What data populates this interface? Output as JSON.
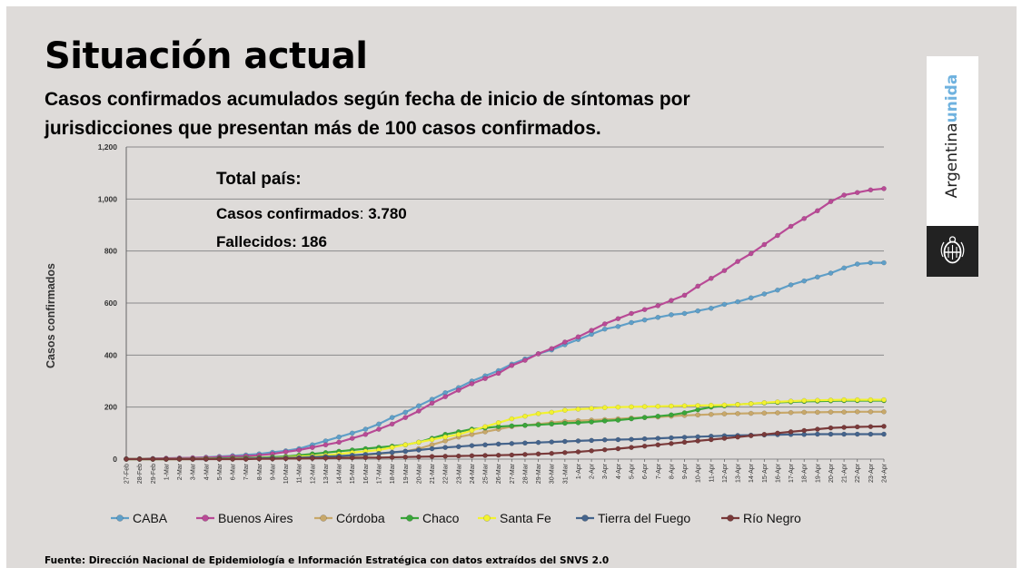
{
  "page": {
    "title": "Situación actual",
    "subtitle": "Casos confirmados acumulados según fecha de inicio de síntomas por jurisdicciones que presentan más de 100 casos confirmados.",
    "source": "Fuente: Dirección Nacional de Epidemiología e Información Estratégica con datos extraídos del SNVS 2.0",
    "brand": {
      "text_main": "Argentina",
      "text_accent": "unida",
      "emblem": "shield-emblem-icon"
    }
  },
  "colors": {
    "background": "#dedbd9",
    "grid": "#8a8a8a",
    "CABA": "#5f9fc8",
    "Buenos Aires": "#b94a96",
    "Córdoba": "#c8a86a",
    "Chaco": "#3aa63a",
    "Santa Fe": "#f2f230",
    "Tierra del Fuego": "#45648c",
    "Río Negro": "#7a3a3a"
  },
  "chart_data": {
    "type": "line",
    "title": "Casos confirmados acumulados según fecha de inicio de síntomas por jurisdicciones que presentan más de 100 casos confirmados.",
    "xlabel": "",
    "ylabel": "Casos confirmados",
    "ylim": [
      0,
      1200
    ],
    "yticks": [
      0,
      200,
      400,
      600,
      800,
      1000,
      1200
    ],
    "ytick_labels": [
      "0",
      "200",
      "400",
      "600",
      "800",
      "1,000",
      "1,200"
    ],
    "grid": true,
    "legend_position": "bottom",
    "x": [
      "27-Feb",
      "28-Feb",
      "29-Feb",
      "1-Mar",
      "2-Mar",
      "3-Mar",
      "4-Mar",
      "5-Mar",
      "6-Mar",
      "7-Mar",
      "8-Mar",
      "9-Mar",
      "10-Mar",
      "11-Mar",
      "12-Mar",
      "13-Mar",
      "14-Mar",
      "15-Mar",
      "16-Mar",
      "17-Mar",
      "18-Mar",
      "19-Mar",
      "20-Mar",
      "21-Mar",
      "22-Mar",
      "23-Mar",
      "24-Mar",
      "25-Mar",
      "26-Mar",
      "27-Mar",
      "28-Mar",
      "29-Mar",
      "30-Mar",
      "31-Mar",
      "1-Apr",
      "2-Apr",
      "3-Apr",
      "4-Apr",
      "5-Apr",
      "6-Apr",
      "7-Apr",
      "8-Apr",
      "9-Apr",
      "10-Apr",
      "11-Apr",
      "12-Apr",
      "13-Apr",
      "14-Apr",
      "15-Apr",
      "16-Apr",
      "17-Apr",
      "18-Apr",
      "19-Apr",
      "20-Apr",
      "21-Apr",
      "22-Apr",
      "23-Apr",
      "24-Apr"
    ],
    "series": [
      {
        "name": "CABA",
        "values": [
          1,
          1,
          2,
          3,
          4,
          5,
          7,
          10,
          13,
          16,
          20,
          26,
          32,
          40,
          55,
          70,
          85,
          100,
          115,
          135,
          160,
          180,
          205,
          230,
          255,
          275,
          300,
          320,
          340,
          365,
          385,
          405,
          420,
          440,
          460,
          480,
          500,
          510,
          525,
          535,
          545,
          555,
          560,
          570,
          580,
          595,
          605,
          620,
          635,
          650,
          670,
          685,
          700,
          715,
          735,
          750,
          755,
          755
        ]
      },
      {
        "name": "Buenos Aires",
        "values": [
          1,
          1,
          2,
          3,
          4,
          5,
          6,
          8,
          10,
          12,
          15,
          20,
          28,
          35,
          45,
          55,
          65,
          80,
          95,
          115,
          135,
          160,
          185,
          215,
          240,
          265,
          290,
          310,
          330,
          360,
          380,
          405,
          425,
          450,
          470,
          495,
          520,
          540,
          560,
          575,
          590,
          610,
          630,
          665,
          695,
          725,
          760,
          790,
          825,
          860,
          895,
          925,
          955,
          990,
          1015,
          1025,
          1035,
          1040
        ]
      },
      {
        "name": "Córdoba",
        "values": [
          0,
          0,
          0,
          0,
          0,
          1,
          1,
          1,
          2,
          2,
          3,
          3,
          4,
          5,
          6,
          8,
          10,
          12,
          15,
          20,
          25,
          30,
          40,
          55,
          70,
          85,
          95,
          105,
          115,
          125,
          130,
          135,
          140,
          145,
          148,
          150,
          152,
          155,
          158,
          160,
          162,
          165,
          168,
          170,
          172,
          174,
          175,
          176,
          177,
          178,
          179,
          180,
          180,
          181,
          181,
          182,
          182,
          182
        ]
      },
      {
        "name": "Chaco",
        "values": [
          0,
          0,
          0,
          0,
          1,
          1,
          2,
          3,
          4,
          5,
          6,
          8,
          10,
          15,
          20,
          25,
          30,
          35,
          40,
          45,
          50,
          55,
          65,
          80,
          95,
          105,
          115,
          120,
          125,
          128,
          130,
          132,
          135,
          138,
          140,
          143,
          147,
          150,
          155,
          160,
          165,
          170,
          178,
          190,
          200,
          205,
          210,
          213,
          216,
          218,
          220,
          222,
          223,
          224,
          225,
          225,
          225,
          225
        ]
      },
      {
        "name": "Santa Fe",
        "values": [
          0,
          0,
          0,
          0,
          0,
          0,
          1,
          1,
          2,
          3,
          4,
          5,
          7,
          10,
          12,
          15,
          20,
          25,
          30,
          35,
          45,
          55,
          65,
          75,
          85,
          95,
          110,
          125,
          140,
          155,
          165,
          175,
          180,
          188,
          192,
          195,
          198,
          200,
          201,
          202,
          203,
          204,
          205,
          206,
          207,
          208,
          210,
          213,
          217,
          220,
          223,
          225,
          226,
          227,
          228,
          228,
          228,
          228
        ]
      },
      {
        "name": "Tierra del Fuego",
        "values": [
          0,
          0,
          0,
          0,
          0,
          0,
          0,
          1,
          1,
          2,
          3,
          4,
          5,
          6,
          8,
          10,
          12,
          15,
          18,
          22,
          26,
          30,
          35,
          40,
          45,
          48,
          52,
          55,
          58,
          60,
          62,
          64,
          66,
          68,
          70,
          72,
          74,
          75,
          76,
          78,
          80,
          82,
          84,
          86,
          88,
          90,
          91,
          92,
          93,
          94,
          95,
          95,
          96,
          96,
          96,
          96,
          96,
          96
        ]
      },
      {
        "name": "Río Negro",
        "values": [
          0,
          0,
          0,
          0,
          0,
          0,
          0,
          0,
          0,
          0,
          1,
          1,
          2,
          2,
          3,
          4,
          5,
          5,
          6,
          6,
          7,
          8,
          9,
          10,
          11,
          12,
          13,
          14,
          15,
          16,
          18,
          20,
          22,
          25,
          28,
          32,
          36,
          40,
          45,
          50,
          55,
          60,
          65,
          70,
          75,
          80,
          85,
          90,
          95,
          100,
          105,
          110,
          115,
          120,
          122,
          124,
          125,
          126
        ]
      }
    ],
    "annotation": {
      "header": "Total país:",
      "lines": [
        {
          "label": "Casos confirmados",
          "value": "3.780"
        },
        {
          "label": "Fallecidos",
          "value": "186"
        }
      ]
    }
  }
}
